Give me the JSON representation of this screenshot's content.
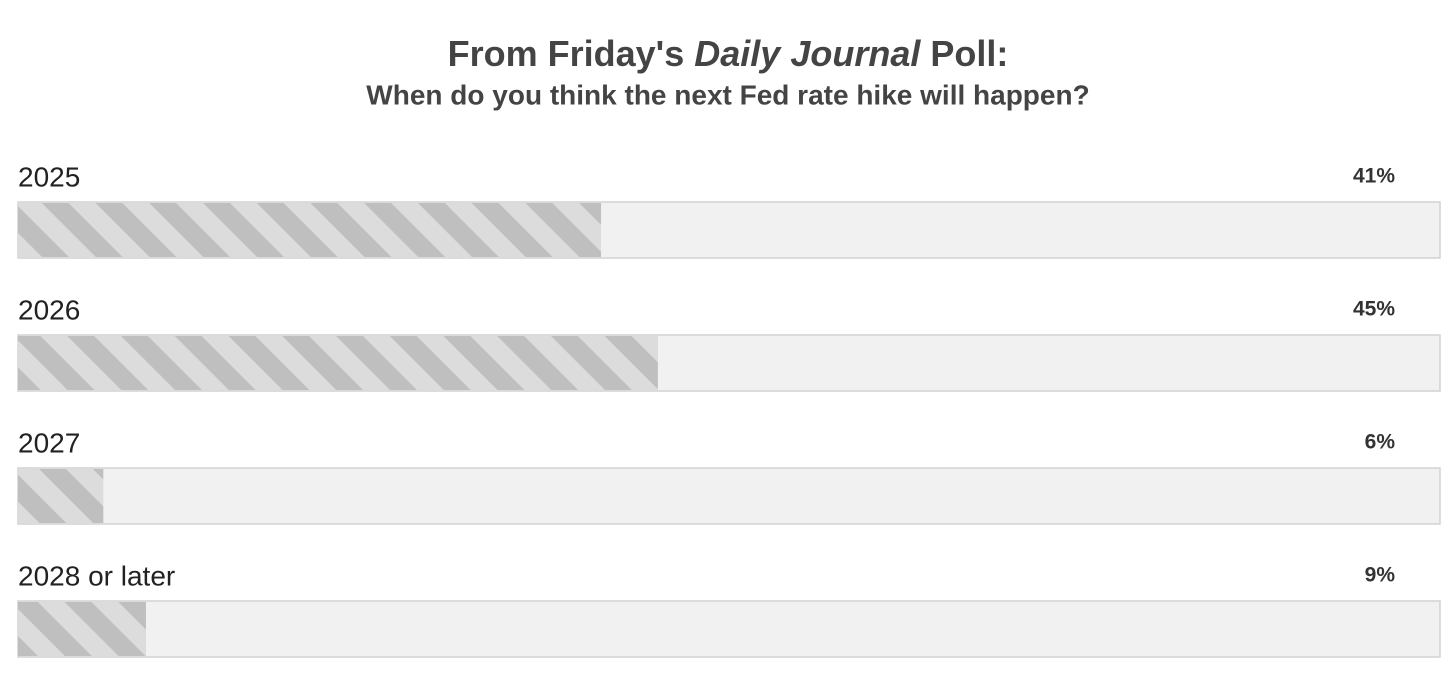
{
  "chart_data": {
    "type": "bar",
    "orientation": "horizontal",
    "title_parts": [
      "From Friday's",
      "Daily Journal",
      "Poll:"
    ],
    "subtitle": "When do you think the next Fed rate hike will happen?",
    "categories": [
      "2025",
      "2026",
      "2027",
      "2028 or later"
    ],
    "values": [
      41,
      45,
      6,
      9
    ],
    "value_labels": [
      "41%",
      "45%",
      "6%",
      "9%"
    ],
    "color": "#bfbfbf",
    "xlim": [
      0,
      100
    ]
  }
}
